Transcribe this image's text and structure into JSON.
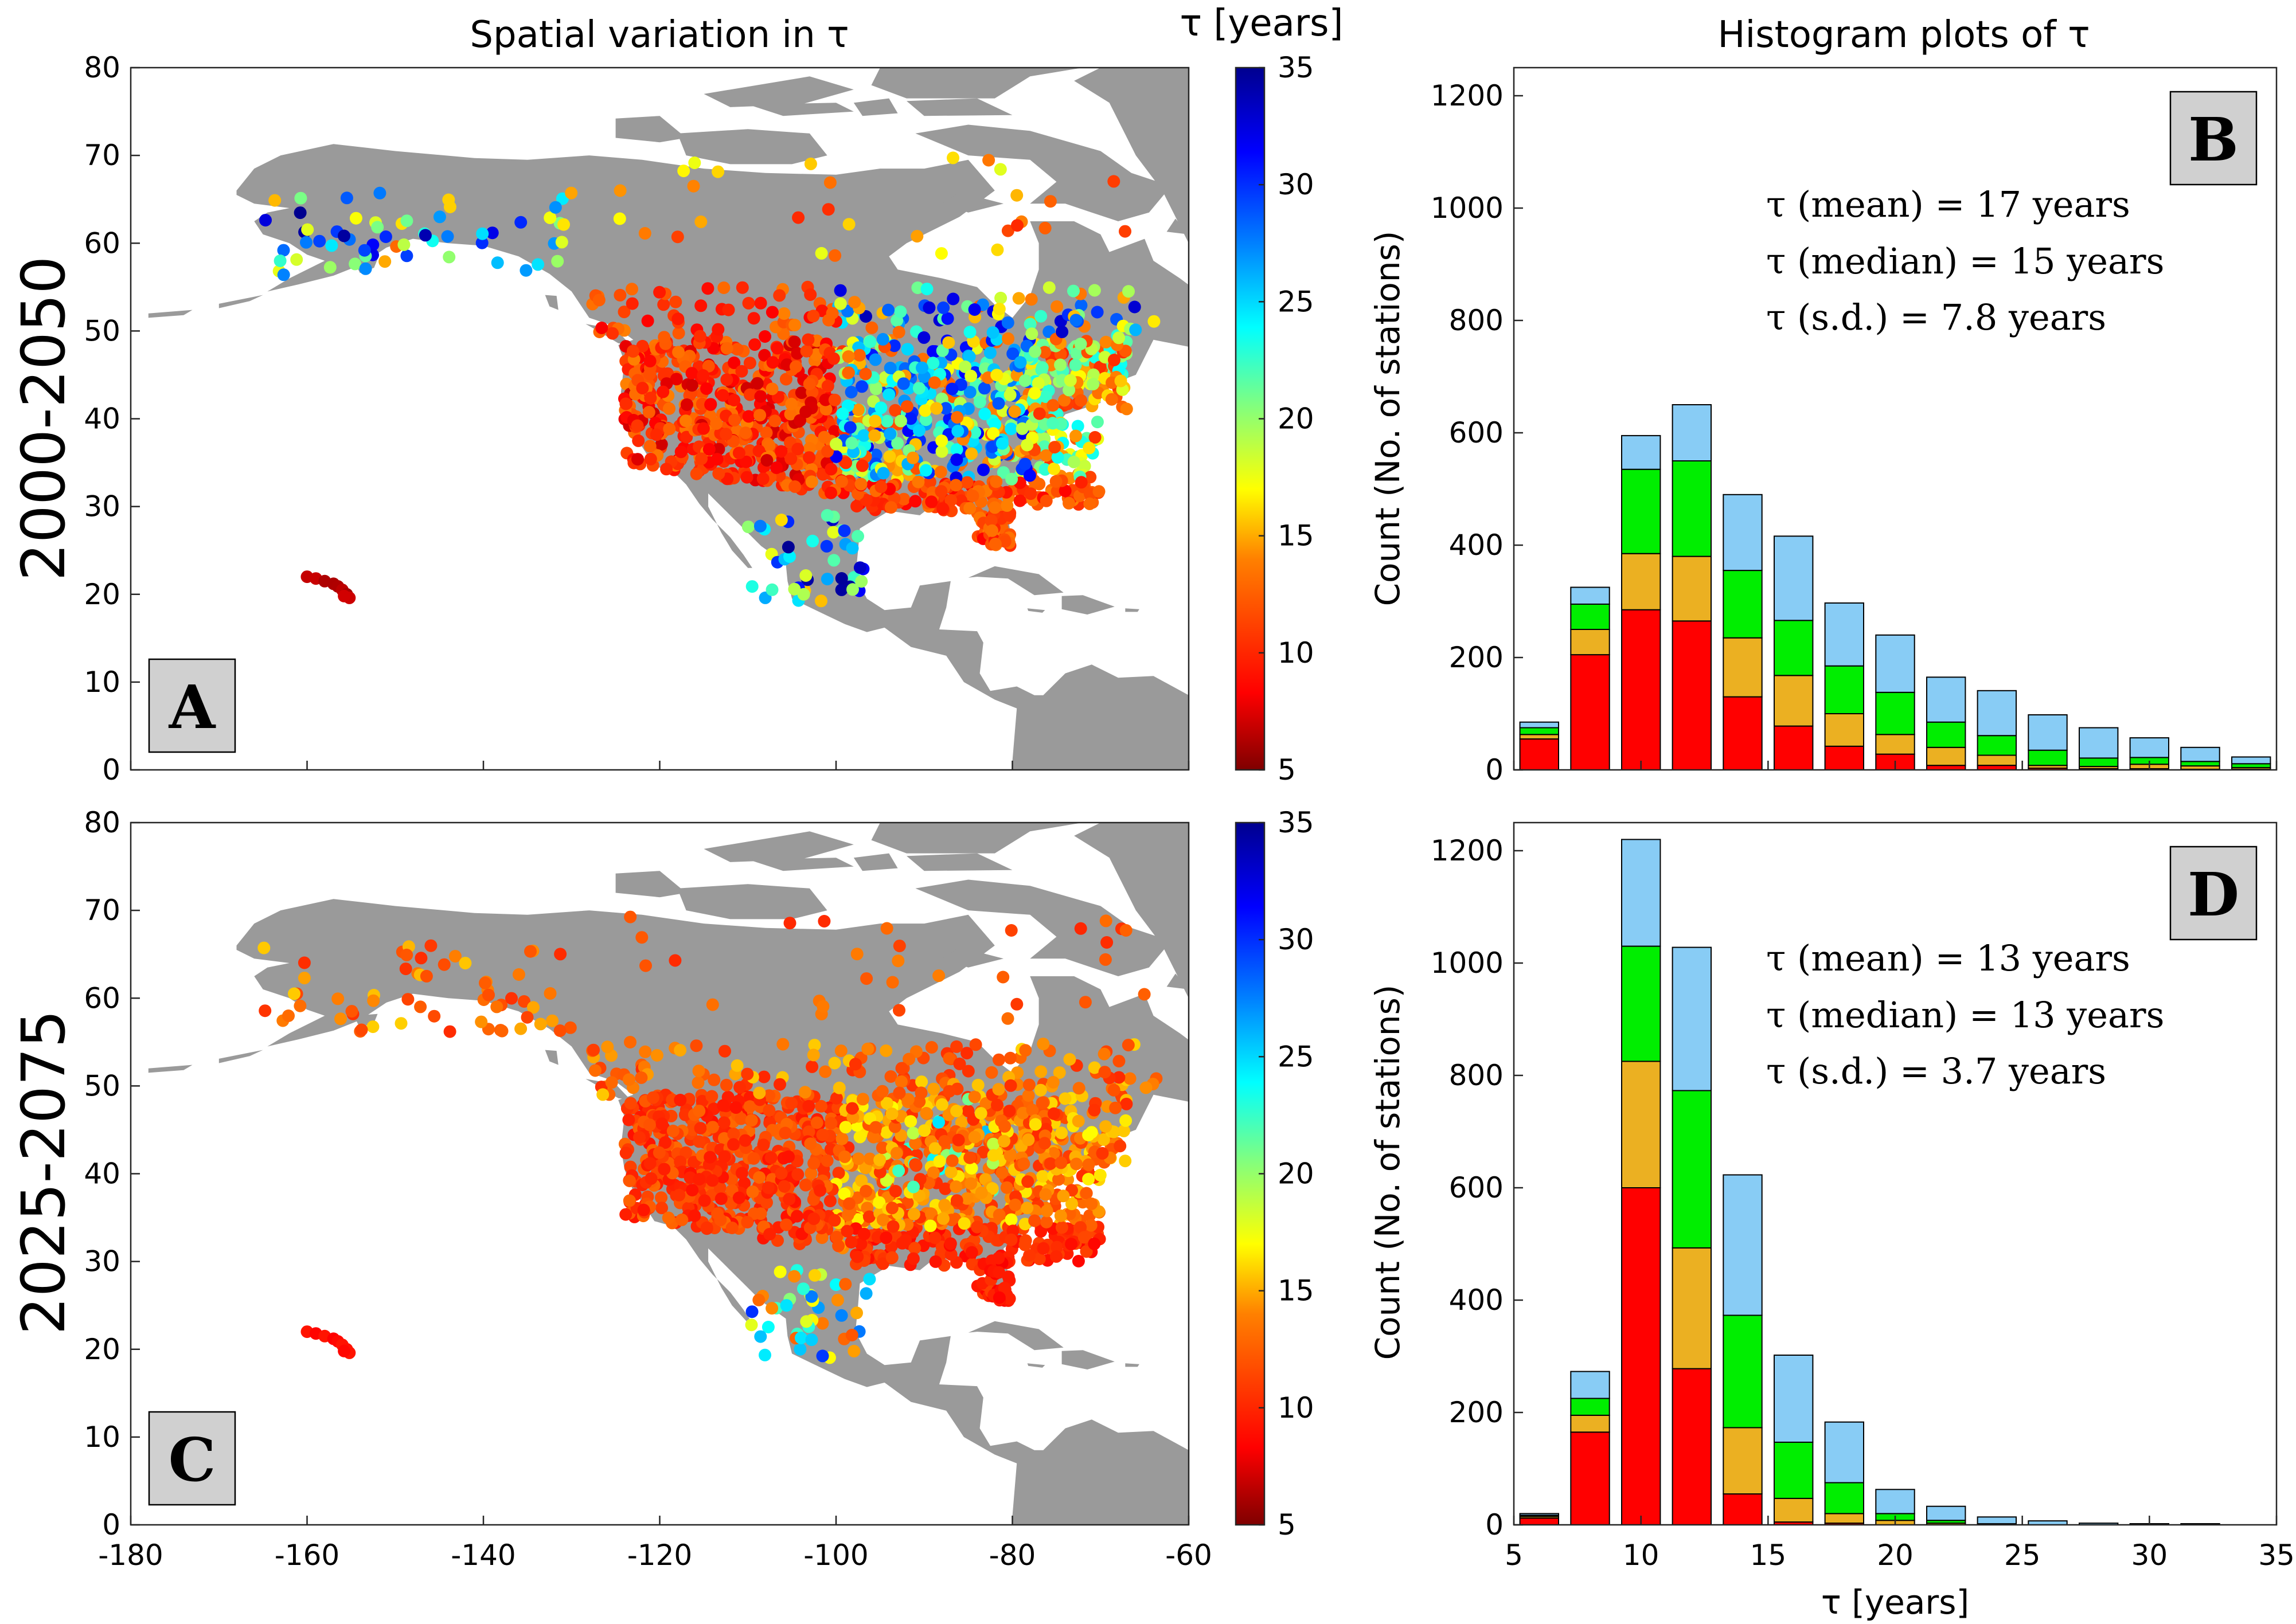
{
  "figure": {
    "left_title": "Spatial variation in τ",
    "right_title": "Histogram plots of τ",
    "colorbar_label": "τ [years]",
    "colorbar_ticks": [
      "5",
      "10",
      "15",
      "20",
      "25",
      "30",
      "35"
    ],
    "colorbar_range": [
      5,
      35
    ],
    "colormap": [
      "#7f0000",
      "#ff0000",
      "#ff8000",
      "#ffff00",
      "#80ff80",
      "#00ffff",
      "#0080ff",
      "#0000ff",
      "#00008f"
    ],
    "land_color": "#9a9a9a",
    "stack_colors": [
      "#ff0000",
      "#ebb022",
      "#00ee00",
      "#88ccf5"
    ]
  },
  "panels": {
    "A": {
      "letter": "A",
      "period": "2000-2050"
    },
    "B": {
      "letter": "B",
      "stat_mean": "τ (mean) =  17 years",
      "stat_median": "τ (median) =  15 years",
      "stat_sd": "τ (s.d.) =  7.8 years",
      "ylabel": "Count (No. of stations)"
    },
    "C": {
      "letter": "C",
      "period": "2025-2075"
    },
    "D": {
      "letter": "D",
      "stat_mean": "τ (mean) =  13 years",
      "stat_median": "τ (median) =  13 years",
      "stat_sd": "τ (s.d.) =  3.7 years",
      "ylabel": "Count (No. of stations)",
      "xlabel": "τ [years]"
    }
  },
  "map_axes": {
    "xlim": [
      -180,
      -60
    ],
    "ylim": [
      0,
      80
    ],
    "x_ticks": [
      "-180",
      "-160",
      "-140",
      "-120",
      "-100",
      "-80",
      "-60"
    ],
    "y_ticks": [
      "0",
      "10",
      "20",
      "30",
      "40",
      "50",
      "60",
      "70",
      "80"
    ]
  },
  "chart_data": [
    {
      "type": "bar",
      "panel": "B",
      "stacked": true,
      "x": [
        6,
        8,
        10,
        12,
        14,
        16,
        18,
        20,
        22,
        24,
        26,
        28,
        30,
        32,
        34
      ],
      "ylim": [
        0,
        1250
      ],
      "xlim": [
        5,
        35
      ],
      "y_ticks": [
        "0",
        "200",
        "400",
        "600",
        "800",
        "1000",
        "1200"
      ],
      "x_ticks": [
        "5",
        "10",
        "15",
        "20",
        "25",
        "30",
        "35"
      ],
      "series": [
        {
          "values": [
            55,
            205,
            285,
            265,
            130,
            78,
            42,
            28,
            8,
            8,
            3,
            2,
            2,
            1,
            1
          ]
        },
        {
          "values": [
            8,
            45,
            100,
            115,
            105,
            90,
            58,
            35,
            32,
            18,
            5,
            4,
            8,
            6,
            3
          ]
        },
        {
          "values": [
            12,
            45,
            150,
            170,
            120,
            98,
            85,
            75,
            45,
            35,
            27,
            15,
            12,
            8,
            7
          ]
        },
        {
          "values": [
            10,
            30,
            60,
            100,
            135,
            150,
            112,
            102,
            80,
            80,
            63,
            54,
            35,
            25,
            12
          ]
        }
      ],
      "ylabel": "Count (No. of stations)"
    },
    {
      "type": "bar",
      "panel": "D",
      "stacked": true,
      "x": [
        6,
        8,
        10,
        12,
        14,
        16,
        18,
        20,
        22,
        24,
        26,
        28,
        30,
        32,
        34
      ],
      "ylim": [
        0,
        1250
      ],
      "xlim": [
        5,
        35
      ],
      "y_ticks": [
        "0",
        "200",
        "400",
        "600",
        "800",
        "1000",
        "1200"
      ],
      "x_ticks": [
        "5",
        "10",
        "15",
        "20",
        "25",
        "30",
        "35"
      ],
      "series": [
        {
          "values": [
            12,
            165,
            600,
            278,
            55,
            5,
            3,
            0,
            0,
            0,
            0,
            0,
            0,
            0,
            0
          ]
        },
        {
          "values": [
            3,
            30,
            225,
            215,
            118,
            42,
            17,
            8,
            3,
            0,
            0,
            0,
            0,
            0,
            0
          ]
        },
        {
          "values": [
            2,
            30,
            205,
            280,
            200,
            100,
            55,
            12,
            5,
            2,
            0,
            0,
            0,
            0,
            0
          ]
        },
        {
          "values": [
            3,
            48,
            190,
            255,
            250,
            155,
            108,
            43,
            25,
            12,
            7,
            3,
            2,
            2,
            0
          ]
        }
      ],
      "xlabel": "τ [years]",
      "ylabel": "Count (No. of stations)"
    }
  ]
}
